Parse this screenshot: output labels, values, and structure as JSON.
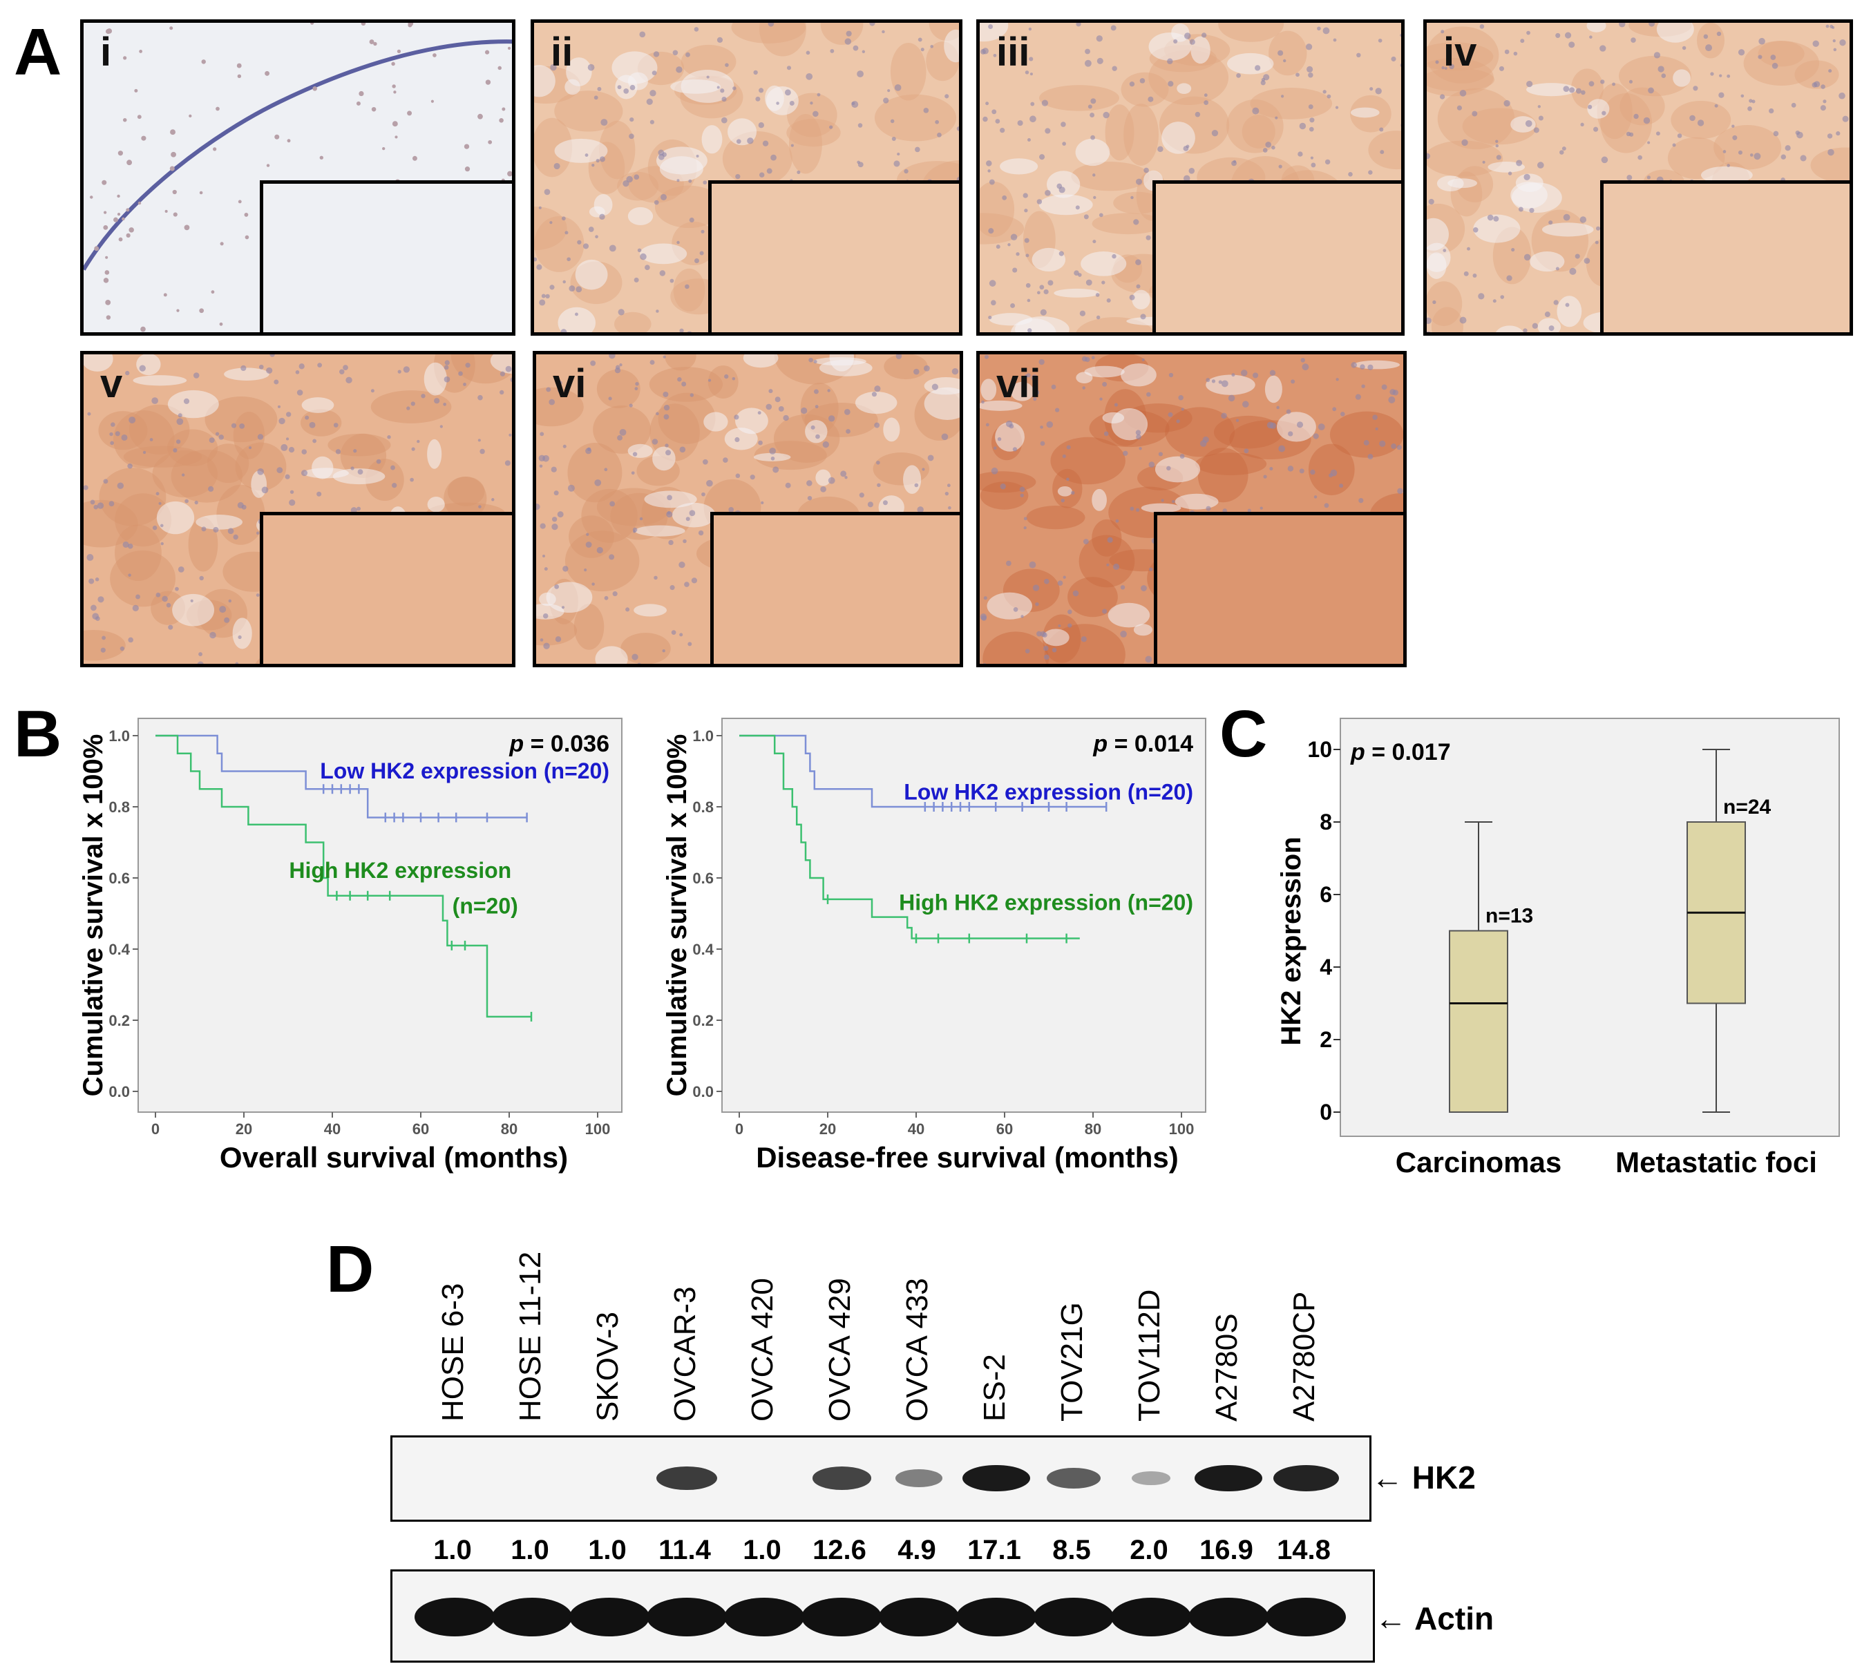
{
  "panel_a": {
    "letter": "A",
    "panels": [
      {
        "roman": "i",
        "tissue": "normal"
      },
      {
        "roman": "ii",
        "tissue": "mild"
      },
      {
        "roman": "iii",
        "tissue": "mild"
      },
      {
        "roman": "iv",
        "tissue": "mild"
      },
      {
        "roman": "v",
        "tissue": "moderate"
      },
      {
        "roman": "vi",
        "tissue": "moderate"
      },
      {
        "roman": "vii",
        "tissue": "strong"
      }
    ],
    "colors": {
      "normal_bg": "#eef0f4",
      "mild_bg": "#edc7aa",
      "moderate_bg": "#e8b593",
      "strong_bg": "#dc9670",
      "nuclei": "#5b5fa0"
    }
  },
  "panel_b": {
    "letter": "B",
    "chart_data": [
      {
        "type": "line",
        "title": "",
        "xlabel": "Overall survival (months)",
        "ylabel": "Cumulative survival x 100%",
        "p_label": "p",
        "p_value": "= 0.036",
        "xlim": [
          0,
          100
        ],
        "ylim": [
          0,
          1.0
        ],
        "xticks": [
          "0",
          "20",
          "40",
          "60",
          "80",
          "100"
        ],
        "yticks": [
          "0.0",
          "0.2",
          "0.4",
          "0.6",
          "0.8",
          "1.0"
        ],
        "series": [
          {
            "name": "Low HK2 expression (n=20)",
            "color": "#1a1acc",
            "line_color": "#7d8fd6",
            "steps": [
              [
                0,
                1.0
              ],
              [
                14,
                0.95
              ],
              [
                15,
                0.9
              ],
              [
                34,
                0.85
              ],
              [
                48,
                0.77
              ],
              [
                84,
                0.77
              ]
            ],
            "censored": [
              38,
              40,
              42,
              44,
              46,
              52,
              54,
              56,
              60,
              64,
              68,
              75,
              84
            ]
          },
          {
            "name_line1": "High HK2 expression",
            "name_line2": "(n=20)",
            "color": "#1e8c1e",
            "line_color": "#3cc070",
            "steps": [
              [
                0,
                1.0
              ],
              [
                5,
                0.95
              ],
              [
                8,
                0.9
              ],
              [
                10,
                0.85
              ],
              [
                15,
                0.8
              ],
              [
                21,
                0.75
              ],
              [
                34,
                0.7
              ],
              [
                38,
                0.6
              ],
              [
                39,
                0.55
              ],
              [
                65,
                0.48
              ],
              [
                66,
                0.41
              ],
              [
                75,
                0.21
              ],
              [
                85,
                0.21
              ]
            ],
            "censored": [
              41,
              44,
              48,
              53,
              67,
              70,
              85
            ]
          }
        ]
      },
      {
        "type": "line",
        "title": "",
        "xlabel": "Disease-free survival (months)",
        "ylabel": "Cumulative survival x 100%",
        "p_label": "p",
        "p_value": "= 0.014",
        "xlim": [
          0,
          100
        ],
        "ylim": [
          0,
          1.0
        ],
        "xticks": [
          "0",
          "20",
          "40",
          "60",
          "80",
          "100"
        ],
        "yticks": [
          "0.0",
          "0.2",
          "0.4",
          "0.6",
          "0.8",
          "1.0"
        ],
        "series": [
          {
            "name": "Low HK2 expression (n=20)",
            "color": "#1a1acc",
            "line_color": "#7d8fd6",
            "steps": [
              [
                0,
                1.0
              ],
              [
                15,
                0.95
              ],
              [
                16,
                0.9
              ],
              [
                17,
                0.85
              ],
              [
                30,
                0.8
              ],
              [
                83,
                0.8
              ]
            ],
            "censored": [
              42,
              44,
              46,
              48,
              50,
              52,
              58,
              64,
              70,
              74,
              83
            ]
          },
          {
            "name": "High HK2 expression (n=20)",
            "color": "#1e8c1e",
            "line_color": "#3cc070",
            "steps": [
              [
                0,
                1.0
              ],
              [
                8,
                0.95
              ],
              [
                10,
                0.85
              ],
              [
                12,
                0.8
              ],
              [
                13,
                0.75
              ],
              [
                14,
                0.7
              ],
              [
                15,
                0.65
              ],
              [
                16,
                0.6
              ],
              [
                19,
                0.54
              ],
              [
                30,
                0.49
              ],
              [
                38,
                0.46
              ],
              [
                39,
                0.43
              ],
              [
                77,
                0.43
              ]
            ],
            "censored": [
              20,
              40,
              45,
              52,
              65,
              74
            ]
          }
        ]
      }
    ]
  },
  "panel_c": {
    "letter": "C",
    "chart_data": {
      "type": "box",
      "p_label": "p",
      "p_value": "= 0.017",
      "ylabel": "HK2 expression",
      "ylim": [
        0,
        10
      ],
      "yticks": [
        "0",
        "2",
        "4",
        "6",
        "8",
        "10"
      ],
      "categories": [
        "Carcinomas",
        "Metastatic foci"
      ],
      "boxes": [
        {
          "min": 0,
          "q1": 0,
          "median": 3,
          "q3": 5,
          "max": 8,
          "n_label": "n=13"
        },
        {
          "min": 0,
          "q1": 3,
          "median": 5.5,
          "q3": 8,
          "max": 10,
          "n_label": "n=24"
        }
      ],
      "box_color": "#ddd6a6"
    }
  },
  "panel_d": {
    "letter": "D",
    "lanes": [
      "HOSE 6-3",
      "HOSE 11-12",
      "SKOV-3",
      "OVCAR-3",
      "OVCA 420",
      "OVCA 429",
      "OVCA 433",
      "ES-2",
      "TOV21G",
      "TOV112D",
      "A2780S",
      "A2780CP"
    ],
    "hk2_ratios": [
      "1.0",
      "1.0",
      "1.0",
      "11.4",
      "1.0",
      "12.6",
      "4.9",
      "17.1",
      "8.5",
      "2.0",
      "16.9",
      "14.8"
    ],
    "hk2_intensity": [
      0,
      0,
      0,
      0.75,
      0,
      0.7,
      0.35,
      0.95,
      0.55,
      0.12,
      0.95,
      0.9
    ],
    "labels": {
      "hk2": "HK2",
      "actin": "Actin"
    }
  }
}
